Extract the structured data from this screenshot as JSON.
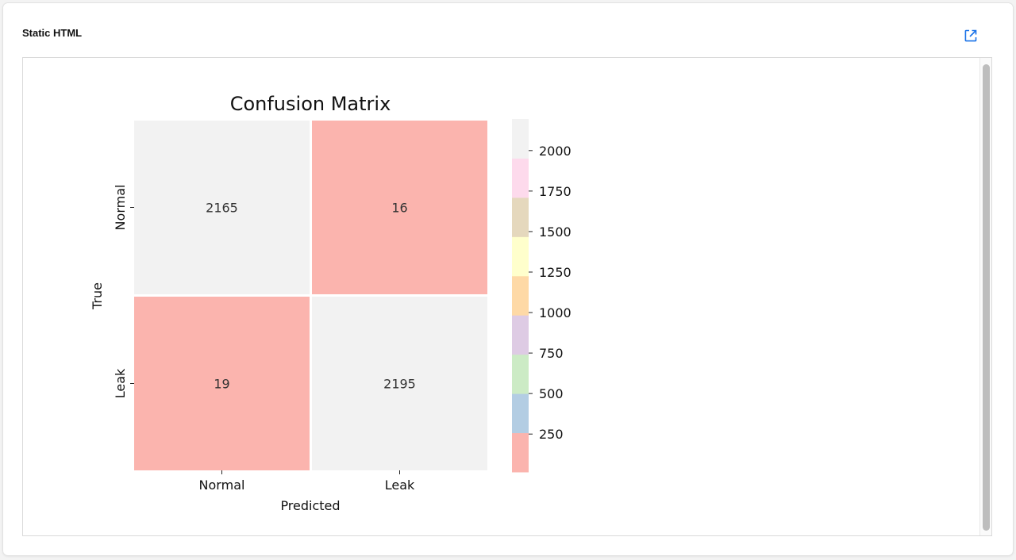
{
  "panel": {
    "title": "Static HTML",
    "open_icon": "external-link-icon",
    "accent": "#1a73e8"
  },
  "chart_data": {
    "type": "heatmap",
    "title": "Confusion Matrix",
    "xlabel": "Predicted",
    "ylabel": "True",
    "x_categories": [
      "Normal",
      "Leak"
    ],
    "y_categories": [
      "Normal",
      "Leak"
    ],
    "values": [
      [
        2165,
        16
      ],
      [
        19,
        2195
      ]
    ],
    "annotations": true,
    "colormap": "Pastel1",
    "colormap_colors": [
      "#fbb4ae",
      "#b3cde3",
      "#ccebc5",
      "#decbe4",
      "#fed9a6",
      "#ffffcc",
      "#e5d8bd",
      "#fddaec",
      "#f2f2f2"
    ],
    "vmin": 16,
    "vmax": 2195,
    "colorbar_ticks": [
      250,
      500,
      750,
      1000,
      1250,
      1500,
      1750,
      2000
    ],
    "grid": false
  }
}
